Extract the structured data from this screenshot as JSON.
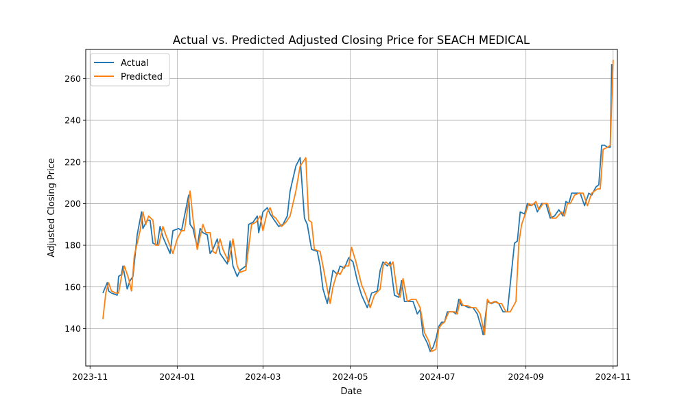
{
  "chart_data": {
    "type": "line",
    "title": "Actual vs. Predicted Adjusted Closing Price for SEACH MEDICAL",
    "xlabel": "Date",
    "ylabel": "Adjusted Closing Price",
    "xlim": [
      "2023-10-29",
      "2024-11-04"
    ],
    "ylim": [
      122,
      274
    ],
    "grid": true,
    "legend_position": "top-left",
    "x_ticks": [
      {
        "date": "2023-11-01",
        "label": "2023-11"
      },
      {
        "date": "2024-01-01",
        "label": "2024-01"
      },
      {
        "date": "2024-03-01",
        "label": "2024-03"
      },
      {
        "date": "2024-05-01",
        "label": "2024-05"
      },
      {
        "date": "2024-07-01",
        "label": "2024-07"
      },
      {
        "date": "2024-09-01",
        "label": "2024-09"
      },
      {
        "date": "2024-11-01",
        "label": "2024-11"
      }
    ],
    "y_ticks": [
      140,
      160,
      180,
      200,
      220,
      240,
      260
    ],
    "series": [
      {
        "name": "Actual",
        "color": "#1f77b4",
        "points": [
          [
            "2023-11-10",
            157
          ],
          [
            "2023-11-13",
            162
          ],
          [
            "2023-11-14",
            158
          ],
          [
            "2023-11-16",
            157
          ],
          [
            "2023-11-20",
            156
          ],
          [
            "2023-11-21",
            165
          ],
          [
            "2023-11-23",
            166
          ],
          [
            "2023-11-24",
            170
          ],
          [
            "2023-11-27",
            159
          ],
          [
            "2023-11-29",
            163
          ],
          [
            "2023-12-01",
            165
          ],
          [
            "2023-12-04",
            185
          ],
          [
            "2023-12-07",
            196
          ],
          [
            "2023-12-08",
            188
          ],
          [
            "2023-12-11",
            192
          ],
          [
            "2023-12-13",
            192
          ],
          [
            "2023-12-15",
            181
          ],
          [
            "2023-12-18",
            180
          ],
          [
            "2023-12-20",
            189
          ],
          [
            "2023-12-22",
            184
          ],
          [
            "2023-12-27",
            176
          ],
          [
            "2023-12-29",
            187
          ],
          [
            "2024-01-02",
            188
          ],
          [
            "2024-01-04",
            187
          ],
          [
            "2024-01-09",
            204
          ],
          [
            "2024-01-10",
            190
          ],
          [
            "2024-01-12",
            188
          ],
          [
            "2024-01-15",
            179
          ],
          [
            "2024-01-17",
            188
          ],
          [
            "2024-01-19",
            186
          ],
          [
            "2024-01-22",
            185
          ],
          [
            "2024-01-24",
            176
          ],
          [
            "2024-01-26",
            178
          ],
          [
            "2024-01-29",
            183
          ],
          [
            "2024-01-31",
            176
          ],
          [
            "2024-02-02",
            174
          ],
          [
            "2024-02-05",
            171
          ],
          [
            "2024-02-07",
            182
          ],
          [
            "2024-02-09",
            170
          ],
          [
            "2024-02-12",
            165
          ],
          [
            "2024-02-14",
            168
          ],
          [
            "2024-02-18",
            170
          ],
          [
            "2024-02-20",
            190
          ],
          [
            "2024-02-23",
            191
          ],
          [
            "2024-02-26",
            194
          ],
          [
            "2024-02-27",
            186
          ],
          [
            "2024-03-01",
            196
          ],
          [
            "2024-03-04",
            198
          ],
          [
            "2024-03-06",
            195
          ],
          [
            "2024-03-08",
            193
          ],
          [
            "2024-03-12",
            189
          ],
          [
            "2024-03-15",
            190
          ],
          [
            "2024-03-18",
            194
          ],
          [
            "2024-03-20",
            206
          ],
          [
            "2024-03-24",
            218
          ],
          [
            "2024-03-27",
            222
          ],
          [
            "2024-03-30",
            193
          ],
          [
            "2024-04-01",
            190
          ],
          [
            "2024-04-04",
            178
          ],
          [
            "2024-04-08",
            177
          ],
          [
            "2024-04-10",
            170
          ],
          [
            "2024-04-12",
            159
          ],
          [
            "2024-04-15",
            152
          ],
          [
            "2024-04-17",
            160
          ],
          [
            "2024-04-19",
            168
          ],
          [
            "2024-04-22",
            166
          ],
          [
            "2024-04-24",
            170
          ],
          [
            "2024-04-27",
            169
          ],
          [
            "2024-04-30",
            174
          ],
          [
            "2024-05-03",
            172
          ],
          [
            "2024-05-06",
            163
          ],
          [
            "2024-05-09",
            156
          ],
          [
            "2024-05-13",
            150
          ],
          [
            "2024-05-16",
            157
          ],
          [
            "2024-05-20",
            158
          ],
          [
            "2024-05-22",
            168
          ],
          [
            "2024-05-24",
            172
          ],
          [
            "2024-05-27",
            170
          ],
          [
            "2024-05-29",
            172
          ],
          [
            "2024-06-01",
            156
          ],
          [
            "2024-06-04",
            155
          ],
          [
            "2024-06-06",
            163
          ],
          [
            "2024-06-08",
            153
          ],
          [
            "2024-06-11",
            153
          ],
          [
            "2024-06-14",
            153
          ],
          [
            "2024-06-17",
            147
          ],
          [
            "2024-06-19",
            149
          ],
          [
            "2024-06-21",
            137
          ],
          [
            "2024-06-24",
            133
          ],
          [
            "2024-06-26",
            129
          ],
          [
            "2024-06-28",
            131
          ],
          [
            "2024-06-30",
            135
          ],
          [
            "2024-07-02",
            141
          ],
          [
            "2024-07-04",
            143
          ],
          [
            "2024-07-06",
            143
          ],
          [
            "2024-07-08",
            148
          ],
          [
            "2024-07-12",
            148
          ],
          [
            "2024-07-14",
            147
          ],
          [
            "2024-07-16",
            154
          ],
          [
            "2024-07-18",
            151
          ],
          [
            "2024-07-20",
            151
          ],
          [
            "2024-07-23",
            150
          ],
          [
            "2024-07-26",
            150
          ],
          [
            "2024-07-29",
            147
          ],
          [
            "2024-08-01",
            140
          ],
          [
            "2024-08-02",
            137
          ],
          [
            "2024-08-05",
            153
          ],
          [
            "2024-08-08",
            152
          ],
          [
            "2024-08-11",
            153
          ],
          [
            "2024-08-13",
            152
          ],
          [
            "2024-08-16",
            148
          ],
          [
            "2024-08-19",
            148
          ],
          [
            "2024-08-24",
            181
          ],
          [
            "2024-08-26",
            182
          ],
          [
            "2024-08-28",
            196
          ],
          [
            "2024-08-31",
            195
          ],
          [
            "2024-09-02",
            200
          ],
          [
            "2024-09-04",
            199
          ],
          [
            "2024-09-07",
            200
          ],
          [
            "2024-09-09",
            196
          ],
          [
            "2024-09-12",
            200
          ],
          [
            "2024-09-15",
            200
          ],
          [
            "2024-09-18",
            193
          ],
          [
            "2024-09-21",
            194
          ],
          [
            "2024-09-24",
            197
          ],
          [
            "2024-09-27",
            194
          ],
          [
            "2024-09-29",
            201
          ],
          [
            "2024-10-01",
            200
          ],
          [
            "2024-10-03",
            205
          ],
          [
            "2024-10-06",
            205
          ],
          [
            "2024-10-09",
            205
          ],
          [
            "2024-10-12",
            199
          ],
          [
            "2024-10-15",
            205
          ],
          [
            "2024-10-17",
            204
          ],
          [
            "2024-10-20",
            208
          ],
          [
            "2024-10-22",
            209
          ],
          [
            "2024-10-24",
            228
          ],
          [
            "2024-10-26",
            228
          ],
          [
            "2024-10-28",
            227
          ],
          [
            "2024-10-30",
            227
          ],
          [
            "2024-10-31",
            267
          ]
        ]
      },
      {
        "name": "Predicted",
        "color": "#ff7f0e",
        "points": [
          [
            "2023-11-10",
            144.5
          ],
          [
            "2023-11-12",
            157
          ],
          [
            "2023-11-14",
            162
          ],
          [
            "2023-11-16",
            158
          ],
          [
            "2023-11-19",
            157
          ],
          [
            "2023-11-21",
            157
          ],
          [
            "2023-11-23",
            165
          ],
          [
            "2023-11-25",
            170
          ],
          [
            "2023-11-28",
            164
          ],
          [
            "2023-11-30",
            158
          ],
          [
            "2023-12-02",
            175
          ],
          [
            "2023-12-06",
            187
          ],
          [
            "2023-12-08",
            196
          ],
          [
            "2023-12-10",
            190
          ],
          [
            "2023-12-12",
            194
          ],
          [
            "2023-12-15",
            192
          ],
          [
            "2023-12-17",
            180
          ],
          [
            "2023-12-19",
            180
          ],
          [
            "2023-12-22",
            189
          ],
          [
            "2023-12-24",
            185
          ],
          [
            "2023-12-29",
            176
          ],
          [
            "2024-01-01",
            183
          ],
          [
            "2024-01-04",
            187
          ],
          [
            "2024-01-06",
            187
          ],
          [
            "2024-01-10",
            206
          ],
          [
            "2024-01-12",
            193
          ],
          [
            "2024-01-15",
            178
          ],
          [
            "2024-01-19",
            190
          ],
          [
            "2024-01-21",
            186
          ],
          [
            "2024-01-24",
            186
          ],
          [
            "2024-01-26",
            177
          ],
          [
            "2024-01-28",
            176
          ],
          [
            "2024-01-31",
            183
          ],
          [
            "2024-02-02",
            178
          ],
          [
            "2024-02-06",
            172
          ],
          [
            "2024-02-09",
            183
          ],
          [
            "2024-02-12",
            170
          ],
          [
            "2024-02-14",
            167
          ],
          [
            "2024-02-18",
            168
          ],
          [
            "2024-02-22",
            190
          ],
          [
            "2024-02-25",
            191
          ],
          [
            "2024-02-28",
            194
          ],
          [
            "2024-03-01",
            187
          ],
          [
            "2024-03-04",
            196
          ],
          [
            "2024-03-06",
            198
          ],
          [
            "2024-03-08",
            194
          ],
          [
            "2024-03-10",
            193
          ],
          [
            "2024-03-14",
            189
          ],
          [
            "2024-03-17",
            191
          ],
          [
            "2024-03-20",
            194
          ],
          [
            "2024-03-24",
            206
          ],
          [
            "2024-03-27",
            218
          ],
          [
            "2024-03-31",
            222
          ],
          [
            "2024-04-02",
            192
          ],
          [
            "2024-04-04",
            191
          ],
          [
            "2024-04-06",
            178
          ],
          [
            "2024-04-10",
            177
          ],
          [
            "2024-04-12",
            170
          ],
          [
            "2024-04-15",
            159
          ],
          [
            "2024-04-17",
            152
          ],
          [
            "2024-04-19",
            160
          ],
          [
            "2024-04-22",
            167
          ],
          [
            "2024-04-24",
            166
          ],
          [
            "2024-04-27",
            170
          ],
          [
            "2024-04-30",
            170
          ],
          [
            "2024-05-02",
            179
          ],
          [
            "2024-05-05",
            172
          ],
          [
            "2024-05-09",
            161
          ],
          [
            "2024-05-12",
            156
          ],
          [
            "2024-05-15",
            150
          ],
          [
            "2024-05-18",
            156
          ],
          [
            "2024-05-22",
            159
          ],
          [
            "2024-05-24",
            170
          ],
          [
            "2024-05-26",
            172
          ],
          [
            "2024-05-29",
            170
          ],
          [
            "2024-05-31",
            172
          ],
          [
            "2024-06-03",
            157
          ],
          [
            "2024-06-05",
            155
          ],
          [
            "2024-06-07",
            164
          ],
          [
            "2024-06-10",
            153
          ],
          [
            "2024-06-13",
            154
          ],
          [
            "2024-06-16",
            154
          ],
          [
            "2024-06-19",
            150
          ],
          [
            "2024-06-22",
            138
          ],
          [
            "2024-06-25",
            134
          ],
          [
            "2024-06-27",
            129
          ],
          [
            "2024-06-30",
            130
          ],
          [
            "2024-07-02",
            140
          ],
          [
            "2024-07-04",
            142
          ],
          [
            "2024-07-06",
            143
          ],
          [
            "2024-07-09",
            148
          ],
          [
            "2024-07-13",
            148
          ],
          [
            "2024-07-15",
            147
          ],
          [
            "2024-07-17",
            154
          ],
          [
            "2024-07-19",
            151
          ],
          [
            "2024-07-22",
            151
          ],
          [
            "2024-07-25",
            150
          ],
          [
            "2024-07-28",
            150
          ],
          [
            "2024-07-31",
            147
          ],
          [
            "2024-08-03",
            137
          ],
          [
            "2024-08-05",
            154
          ],
          [
            "2024-08-07",
            152
          ],
          [
            "2024-08-10",
            153
          ],
          [
            "2024-08-13",
            152
          ],
          [
            "2024-08-15",
            152
          ],
          [
            "2024-08-18",
            148
          ],
          [
            "2024-08-21",
            148
          ],
          [
            "2024-08-25",
            153
          ],
          [
            "2024-08-27",
            181
          ],
          [
            "2024-08-29",
            190
          ],
          [
            "2024-09-01",
            196
          ],
          [
            "2024-09-03",
            200
          ],
          [
            "2024-09-05",
            199
          ],
          [
            "2024-09-08",
            201
          ],
          [
            "2024-09-10",
            197
          ],
          [
            "2024-09-13",
            200
          ],
          [
            "2024-09-16",
            200
          ],
          [
            "2024-09-19",
            193
          ],
          [
            "2024-09-22",
            193
          ],
          [
            "2024-09-26",
            196
          ],
          [
            "2024-09-28",
            194
          ],
          [
            "2024-09-30",
            200
          ],
          [
            "2024-10-02",
            200
          ],
          [
            "2024-10-05",
            204
          ],
          [
            "2024-10-08",
            205
          ],
          [
            "2024-10-11",
            205
          ],
          [
            "2024-10-14",
            199
          ],
          [
            "2024-10-17",
            205
          ],
          [
            "2024-10-19",
            206
          ],
          [
            "2024-10-21",
            207
          ],
          [
            "2024-10-23",
            207
          ],
          [
            "2024-10-25",
            226
          ],
          [
            "2024-10-28",
            227
          ],
          [
            "2024-10-30",
            228
          ],
          [
            "2024-11-01",
            269
          ]
        ]
      }
    ]
  }
}
